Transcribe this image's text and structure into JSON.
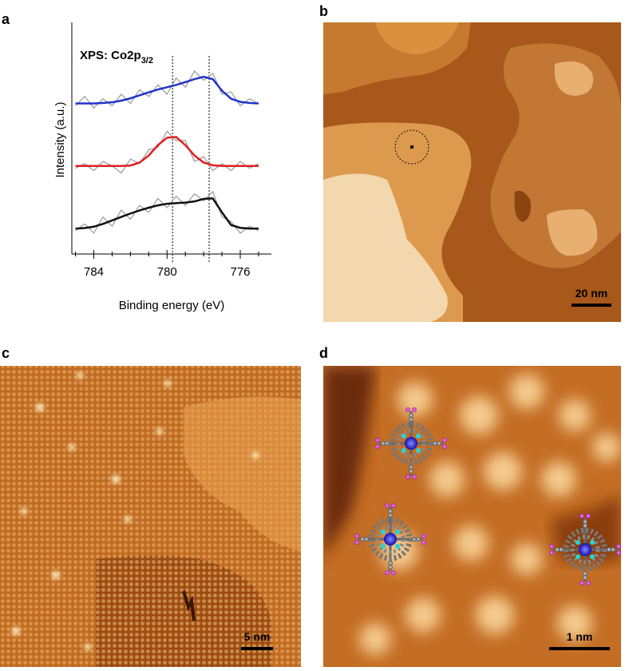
{
  "panels": {
    "a": "a",
    "b": "b",
    "c": "c",
    "d": "d"
  },
  "chart_data": {
    "type": "line",
    "title": {
      "text": "XPS: Co2p",
      "subscript": "3/2"
    },
    "x_label": "Binding energy (eV)",
    "y_label": "Intensity (a.u.)",
    "x": [
      785,
      784.5,
      784,
      783.5,
      783,
      782.5,
      782,
      781.5,
      781,
      780.5,
      780,
      779.5,
      779,
      778.5,
      778,
      777.5,
      777,
      776.5,
      776,
      775.5,
      775
    ],
    "xlim": [
      785.2,
      774.3
    ],
    "xticks": [
      784,
      780,
      776
    ],
    "minor_xticks": [
      785,
      783,
      782,
      781,
      779,
      778,
      777,
      775
    ],
    "ylim": [
      0,
      10
    ],
    "vlines": [
      779.7,
      777.7
    ],
    "series": [
      {
        "color": "#999999",
        "values": [
          6.4,
          6.8,
          6.3,
          6.7,
          6.4,
          6.9,
          6.5,
          7.1,
          6.8,
          7.3,
          6.9,
          7.6,
          7.2,
          7.9,
          7.5,
          7.8,
          6.9,
          7.0,
          6.4,
          6.7,
          6.5
        ]
      },
      {
        "color": "#2233cc",
        "values": [
          6.5,
          6.5,
          6.5,
          6.52,
          6.55,
          6.62,
          6.72,
          6.85,
          6.98,
          7.1,
          7.2,
          7.3,
          7.42,
          7.55,
          7.65,
          7.55,
          7.05,
          6.7,
          6.57,
          6.52,
          6.5
        ]
      },
      {
        "color": "#999999",
        "values": [
          3.7,
          3.9,
          3.6,
          4.0,
          3.8,
          3.5,
          4.1,
          3.9,
          4.5,
          4.6,
          5.3,
          4.9,
          4.9,
          4.0,
          4.2,
          3.6,
          3.9,
          3.6,
          4.0,
          3.7,
          3.9
        ]
      },
      {
        "color": "#e02020",
        "values": [
          3.8,
          3.8,
          3.8,
          3.8,
          3.8,
          3.8,
          3.82,
          3.95,
          4.25,
          4.7,
          5.02,
          5.05,
          4.7,
          4.25,
          3.95,
          3.83,
          3.8,
          3.8,
          3.8,
          3.8,
          3.8
        ]
      },
      {
        "color": "#999999",
        "values": [
          1.0,
          1.3,
          0.9,
          1.6,
          1.2,
          1.9,
          1.5,
          2.1,
          1.8,
          2.4,
          2.0,
          2.5,
          2.1,
          2.6,
          2.3,
          2.7,
          1.6,
          1.4,
          0.9,
          1.2,
          1.0
        ]
      },
      {
        "color": "#111111",
        "values": [
          1.1,
          1.12,
          1.18,
          1.3,
          1.45,
          1.6,
          1.75,
          1.88,
          2.0,
          2.1,
          2.17,
          2.2,
          2.22,
          2.27,
          2.38,
          2.4,
          1.8,
          1.25,
          1.13,
          1.1,
          1.1
        ]
      }
    ]
  },
  "scale_bars": {
    "b": "20 nm",
    "c": "5 nm",
    "d": "1 nm"
  }
}
